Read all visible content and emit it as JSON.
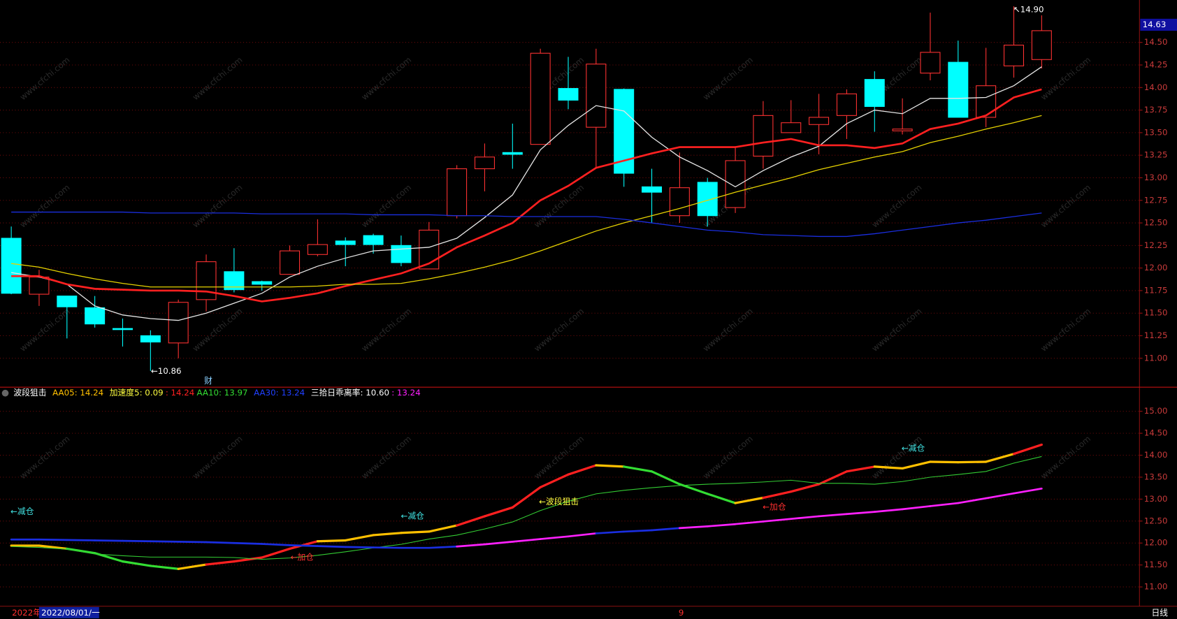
{
  "chart_data": [
    {
      "type": "candlestick",
      "open": [
        12.33,
        11.71,
        11.69,
        11.56,
        11.33,
        11.25,
        11.17,
        11.65,
        11.96,
        11.85,
        11.93,
        12.15,
        12.3,
        12.36,
        12.25,
        11.99,
        12.58,
        13.1,
        13.28,
        13.37,
        13.99,
        13.56,
        13.98,
        12.9,
        12.58,
        12.95,
        12.67,
        13.24,
        13.5,
        13.59,
        13.69,
        14.09,
        13.52,
        14.16,
        14.28,
        13.67,
        14.24,
        14.31
      ],
      "high": [
        12.46,
        11.98,
        11.69,
        11.69,
        11.44,
        11.31,
        11.65,
        12.15,
        12.22,
        11.86,
        12.25,
        12.54,
        12.34,
        12.38,
        12.36,
        12.51,
        13.14,
        13.38,
        13.6,
        14.43,
        14.34,
        14.43,
        13.99,
        13.1,
        13.28,
        13.0,
        13.34,
        13.85,
        13.86,
        13.93,
        13.98,
        14.18,
        13.88,
        14.83,
        14.52,
        14.44,
        14.9,
        14.8
      ],
      "low": [
        11.71,
        11.58,
        11.22,
        11.34,
        11.13,
        10.86,
        11.0,
        11.52,
        11.73,
        11.75,
        11.93,
        12.13,
        12.02,
        12.16,
        12.02,
        11.99,
        12.55,
        12.85,
        13.1,
        13.37,
        13.76,
        13.11,
        12.9,
        12.5,
        12.5,
        12.46,
        12.61,
        13.1,
        13.5,
        13.26,
        13.43,
        13.51,
        13.48,
        14.08,
        13.67,
        13.56,
        14.11,
        14.21
      ],
      "close": [
        11.72,
        11.9,
        11.57,
        11.38,
        11.32,
        11.18,
        11.62,
        12.07,
        11.76,
        11.82,
        12.19,
        12.26,
        12.26,
        12.26,
        12.06,
        12.42,
        13.1,
        13.23,
        13.26,
        14.38,
        13.86,
        14.26,
        13.05,
        12.84,
        12.89,
        12.58,
        13.19,
        13.69,
        13.61,
        13.67,
        13.93,
        13.79,
        13.54,
        14.39,
        13.67,
        14.02,
        14.47,
        14.63
      ],
      "up_color": "#ff3232",
      "down_color": "#00ffff",
      "series": [
        {
          "color": "#e6e6e6",
          "values": [
            11.95,
            11.9,
            11.82,
            11.58,
            11.48,
            11.44,
            11.42,
            11.5,
            11.61,
            11.72,
            11.9,
            12.02,
            12.11,
            12.19,
            12.21,
            12.23,
            12.33,
            12.56,
            12.81,
            13.31,
            13.58,
            13.8,
            13.74,
            13.45,
            13.23,
            13.08,
            12.9,
            13.08,
            13.23,
            13.35,
            13.6,
            13.75,
            13.71,
            13.88,
            13.88,
            13.89,
            14.02,
            14.23
          ]
        },
        {
          "color": "#ff2020",
          "width": 2.5,
          "values": [
            11.91,
            11.91,
            11.82,
            11.77,
            11.76,
            11.75,
            11.75,
            11.74,
            11.69,
            11.63,
            11.67,
            11.72,
            11.8,
            11.87,
            11.94,
            12.05,
            12.23,
            12.36,
            12.5,
            12.75,
            12.91,
            13.11,
            13.19,
            13.27,
            13.34,
            13.34,
            13.34,
            13.39,
            13.43,
            13.36,
            13.36,
            13.33,
            13.38,
            13.54,
            13.6,
            13.69,
            13.89,
            13.98
          ]
        },
        {
          "color": "#e6d200",
          "values": [
            12.05,
            12.01,
            11.94,
            11.88,
            11.83,
            11.79,
            11.79,
            11.79,
            11.79,
            11.79,
            11.79,
            11.8,
            11.82,
            11.82,
            11.83,
            11.88,
            11.94,
            12.01,
            12.09,
            12.19,
            12.3,
            12.41,
            12.5,
            12.58,
            12.66,
            12.75,
            12.84,
            12.92,
            13.0,
            13.09,
            13.16,
            13.23,
            13.29,
            13.39,
            13.46,
            13.54,
            13.61,
            13.69
          ]
        },
        {
          "color": "#1a2ee0",
          "values": [
            12.62,
            12.62,
            12.62,
            12.62,
            12.62,
            12.61,
            12.61,
            12.61,
            12.61,
            12.6,
            12.6,
            12.6,
            12.6,
            12.59,
            12.59,
            12.59,
            12.58,
            12.58,
            12.57,
            12.57,
            12.57,
            12.57,
            12.54,
            12.5,
            12.46,
            12.42,
            12.4,
            12.37,
            12.36,
            12.35,
            12.35,
            12.38,
            12.42,
            12.46,
            12.5,
            12.53,
            12.57,
            12.61
          ]
        }
      ],
      "ylim": [
        10.68,
        14.97
      ],
      "yticks": [
        {
          "value": 11,
          "label": "11.00"
        },
        {
          "value": 11.25,
          "label": "11.25"
        },
        {
          "value": 11.5,
          "label": "11.50"
        },
        {
          "value": 11.75,
          "label": "11.75"
        },
        {
          "value": 12,
          "label": "12.00"
        },
        {
          "value": 12.25,
          "label": "12.25"
        },
        {
          "value": 12.5,
          "label": "12.50"
        },
        {
          "value": 12.75,
          "label": "12.75"
        },
        {
          "value": 13,
          "label": "13.00"
        },
        {
          "value": 13.25,
          "label": "13.25"
        },
        {
          "value": 13.5,
          "label": "13.50"
        },
        {
          "value": 13.75,
          "label": "13.75"
        },
        {
          "value": 14,
          "label": "14.00"
        },
        {
          "value": 14.25,
          "label": "14.25"
        },
        {
          "value": 14.5,
          "label": "14.50"
        }
      ],
      "grid": true,
      "annotations": [
        "←10.86",
        "↖14.90",
        "财"
      ]
    },
    {
      "type": "line",
      "title": "波段狙击",
      "legend": [
        {
          "text": "AA05: 14.24",
          "color": "#ffc000"
        },
        {
          "text": "加速度5: 0.09",
          "color": "#ffff40"
        },
        {
          "text": ": 14.24",
          "color": "#ff2020"
        },
        {
          "text": "AA10: 13.97",
          "color": "#33dd33"
        },
        {
          "text": "AA30: 13.24",
          "color": "#2040ff"
        },
        {
          "text": "三拾日乖离率: 10.60",
          "color": "#ffffff"
        },
        {
          "text": ": 13.24",
          "color": "#ff20ff"
        }
      ],
      "series": [
        {
          "width": 3,
          "values": [
            11.94,
            11.94,
            11.87,
            11.77,
            11.58,
            11.48,
            11.41,
            11.51,
            11.58,
            11.67,
            11.87,
            12.04,
            12.06,
            12.18,
            12.23,
            12.26,
            12.4,
            12.61,
            12.81,
            13.27,
            13.56,
            13.77,
            13.74,
            13.63,
            13.34,
            13.12,
            12.91,
            13.03,
            13.17,
            13.34,
            13.63,
            13.74,
            13.7,
            13.85,
            13.84,
            13.85,
            14.03,
            14.24
          ],
          "colors": [
            "#ffc000",
            "#ffc000",
            "#ffc000",
            "#33dd33",
            "#33dd33",
            "#33dd33",
            "#33dd33",
            "#ffc000",
            "#ff2020",
            "#ff2020",
            "#ff2020",
            "#ff2020",
            "#ffc000",
            "#ffc000",
            "#ffc000",
            "#ffc000",
            "#ffc000",
            "#ff2020",
            "#ff2020",
            "#ff2020",
            "#ff2020",
            "#ff2020",
            "#ffc000",
            "#33dd33",
            "#33dd33",
            "#33dd33",
            "#33dd33",
            "#ffc000",
            "#ff2020",
            "#ff2020",
            "#ff2020",
            "#ff2020",
            "#ffc000",
            "#ffc000",
            "#ffc000",
            "#ffc000",
            "#ffc000",
            "#ff2020"
          ]
        },
        {
          "width": 1,
          "color": "#33cc33",
          "values": [
            11.92,
            11.9,
            11.86,
            11.75,
            11.71,
            11.68,
            11.68,
            11.68,
            11.67,
            11.63,
            11.66,
            11.72,
            11.8,
            11.89,
            11.97,
            12.09,
            12.18,
            12.32,
            12.48,
            12.74,
            12.95,
            13.12,
            13.2,
            13.26,
            13.31,
            13.34,
            13.36,
            13.39,
            13.43,
            13.36,
            13.36,
            13.34,
            13.4,
            13.5,
            13.56,
            13.63,
            13.82,
            13.97
          ]
        },
        {
          "width": 2.5,
          "values": [
            12.08,
            12.08,
            12.07,
            12.06,
            12.05,
            12.04,
            12.03,
            12.02,
            12.0,
            11.98,
            11.95,
            11.93,
            11.91,
            11.9,
            11.89,
            11.89,
            11.92,
            11.97,
            12.03,
            12.09,
            12.15,
            12.22,
            12.26,
            12.29,
            12.34,
            12.38,
            12.43,
            12.49,
            12.55,
            12.61,
            12.66,
            12.71,
            12.77,
            12.84,
            12.91,
            13.02,
            13.13,
            13.24
          ],
          "colors": [
            "#1a2ee0",
            "#1a2ee0",
            "#1a2ee0",
            "#1a2ee0",
            "#1a2ee0",
            "#1a2ee0",
            "#1a2ee0",
            "#1a2ee0",
            "#1a2ee0",
            "#1a2ee0",
            "#1a2ee0",
            "#1a2ee0",
            "#1a2ee0",
            "#1a2ee0",
            "#1a2ee0",
            "#1a2ee0",
            "#1a2ee0",
            "#ff20ff",
            "#ff20ff",
            "#ff20ff",
            "#ff20ff",
            "#ff20ff",
            "#1a2ee0",
            "#1a2ee0",
            "#1a2ee0",
            "#ff20ff",
            "#ff20ff",
            "#ff20ff",
            "#ff20ff",
            "#ff20ff",
            "#ff20ff",
            "#ff20ff",
            "#ff20ff",
            "#ff20ff",
            "#ff20ff",
            "#ff20ff",
            "#ff20ff",
            "#ff20ff"
          ]
        }
      ],
      "ylim": [
        10.56,
        15.55
      ],
      "yticks": [
        {
          "value": 11,
          "label": "11.00"
        },
        {
          "value": 11.5,
          "label": "11.50"
        },
        {
          "value": 12,
          "label": "12.00"
        },
        {
          "value": 12.5,
          "label": "12.50"
        },
        {
          "value": 13,
          "label": "13.00"
        },
        {
          "value": 13.5,
          "label": "13.50"
        },
        {
          "value": 14,
          "label": "14.00"
        },
        {
          "value": 14.5,
          "label": "14.50"
        },
        {
          "value": 15,
          "label": "15.00"
        }
      ],
      "grid": true,
      "annotations": [
        {
          "text": "←减仓",
          "color": "#40e0e0"
        },
        {
          "text": "←减仓",
          "color": "#40e0e0"
        },
        {
          "text": "←加仓",
          "color": "#ff3030"
        },
        {
          "text": "←波段狙击",
          "color": "#ffff40"
        },
        {
          "text": "←加仓",
          "color": "#ff3030"
        },
        {
          "text": "←减仓",
          "color": "#40e0e0"
        }
      ]
    }
  ],
  "last_price": "14.63",
  "footer": {
    "year": "2022年",
    "date": "2022/08/01/一",
    "month": "9",
    "period": "日线"
  },
  "watermark": "www.cfchi.com"
}
